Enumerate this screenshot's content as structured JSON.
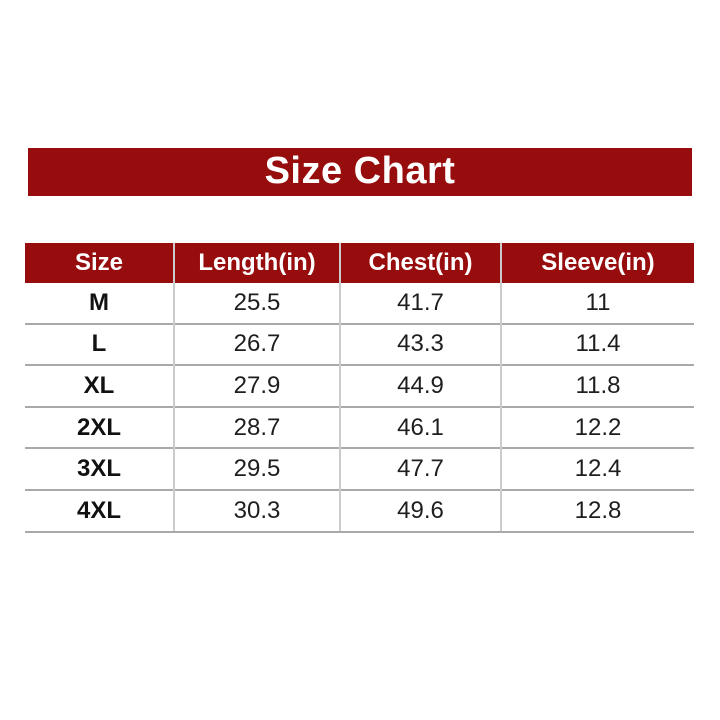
{
  "banner": {
    "title": "Size Chart",
    "bg_color": "#970D0D",
    "text_color": "#FFFFFF"
  },
  "table": {
    "columns": [
      "Size",
      "Length(in)",
      "Chest(in)",
      "Sleeve(in)"
    ],
    "rows": [
      {
        "size": "M",
        "length": "25.5",
        "chest": "41.7",
        "sleeve": "11"
      },
      {
        "size": "L",
        "length": "26.7",
        "chest": "43.3",
        "sleeve": "11.4"
      },
      {
        "size": "XL",
        "length": "27.9",
        "chest": "44.9",
        "sleeve": "11.8"
      },
      {
        "size": "2XL",
        "length": "28.7",
        "chest": "46.1",
        "sleeve": "12.2"
      },
      {
        "size": "3XL",
        "length": "29.5",
        "chest": "47.7",
        "sleeve": "12.4"
      },
      {
        "size": "4XL",
        "length": "30.3",
        "chest": "49.6",
        "sleeve": "12.8"
      }
    ],
    "line_colors": {
      "row_separator": "#A9A9A9",
      "column_divider": "#CBCBCB"
    }
  },
  "chart_data": {
    "type": "table",
    "title": "Size Chart",
    "columns": [
      "Size",
      "Length(in)",
      "Chest(in)",
      "Sleeve(in)"
    ],
    "rows": [
      [
        "M",
        25.5,
        41.7,
        11
      ],
      [
        "L",
        26.7,
        43.3,
        11.4
      ],
      [
        "XL",
        27.9,
        44.9,
        11.8
      ],
      [
        "2XL",
        28.7,
        46.1,
        12.2
      ],
      [
        "3XL",
        29.5,
        47.7,
        12.4
      ],
      [
        "4XL",
        30.3,
        49.6,
        12.8
      ]
    ]
  }
}
